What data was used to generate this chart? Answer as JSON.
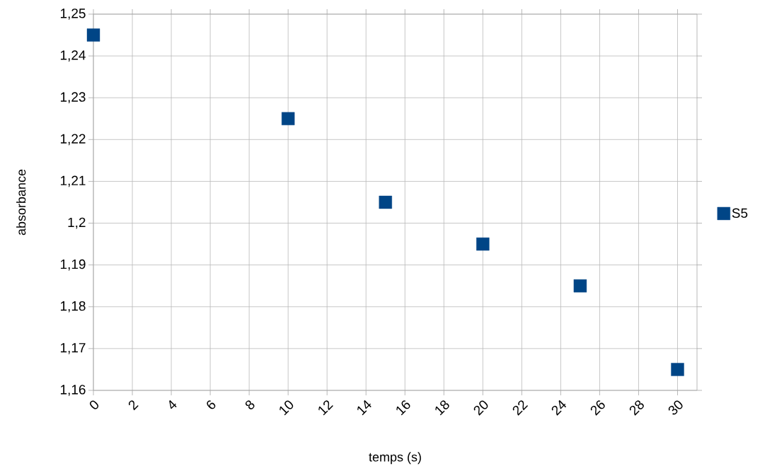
{
  "chart_data": {
    "type": "scatter",
    "xlabel": "temps (s)",
    "ylabel": "absorbance",
    "x": [
      0,
      10,
      15,
      20,
      25,
      30
    ],
    "series": [
      {
        "name": "S5",
        "color": "#004586",
        "values": [
          1.245,
          1.225,
          1.205,
          1.195,
          1.185,
          1.165
        ]
      }
    ],
    "xlim": [
      0,
      31
    ],
    "xticks": [
      0,
      2,
      4,
      6,
      8,
      10,
      12,
      14,
      16,
      18,
      20,
      22,
      24,
      26,
      28,
      30
    ],
    "ylim": [
      1.16,
      1.25
    ],
    "yticks": [
      {
        "value": 1.16,
        "label": "1,16"
      },
      {
        "value": 1.17,
        "label": "1,17"
      },
      {
        "value": 1.18,
        "label": "1,18"
      },
      {
        "value": 1.19,
        "label": "1,19"
      },
      {
        "value": 1.2,
        "label": "1,2"
      },
      {
        "value": 1.21,
        "label": "1,21"
      },
      {
        "value": 1.22,
        "label": "1,22"
      },
      {
        "value": 1.23,
        "label": "1,23"
      },
      {
        "value": 1.24,
        "label": "1,24"
      },
      {
        "value": 1.25,
        "label": "1,25"
      }
    ],
    "grid": true,
    "legend": "right",
    "marker": "square"
  }
}
